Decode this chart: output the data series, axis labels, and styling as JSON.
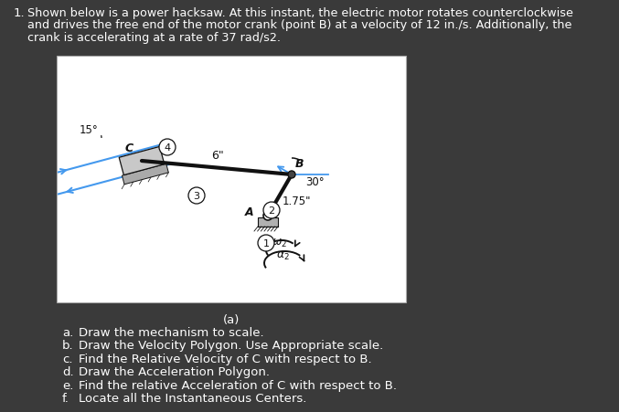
{
  "bg_color": "#3a3a3a",
  "text_color": "#ffffff",
  "box_facecolor": "#ffffff",
  "box_edge": "#bbbbbb",
  "mblack": "#111111",
  "mblue": "#4499ee",
  "mgray": "#b0b0b0",
  "mdarkgray": "#888888",
  "problem_lines": [
    "Shown below is a power hacksaw. At this instant, the electric motor rotates counterclockwise",
    "and drives the free end of the motor crank (point B) at a velocity of 12 in./s. Additionally, the",
    "crank is accelerating at a rate of 37 rad/s2."
  ],
  "sub_labels": [
    "a.",
    "b.",
    "c.",
    "d.",
    "e.",
    "f."
  ],
  "sub_texts": [
    "Draw the mechanism to scale.",
    "Draw the Velocity Polygon. Use Appropriate scale.",
    "Find the Relative Velocity of C with respect to B.",
    "Draw the Acceleration Polygon.",
    "Find the relative Acceleration of C with respect to B.",
    "Locate all the Instantaneous Centers."
  ]
}
